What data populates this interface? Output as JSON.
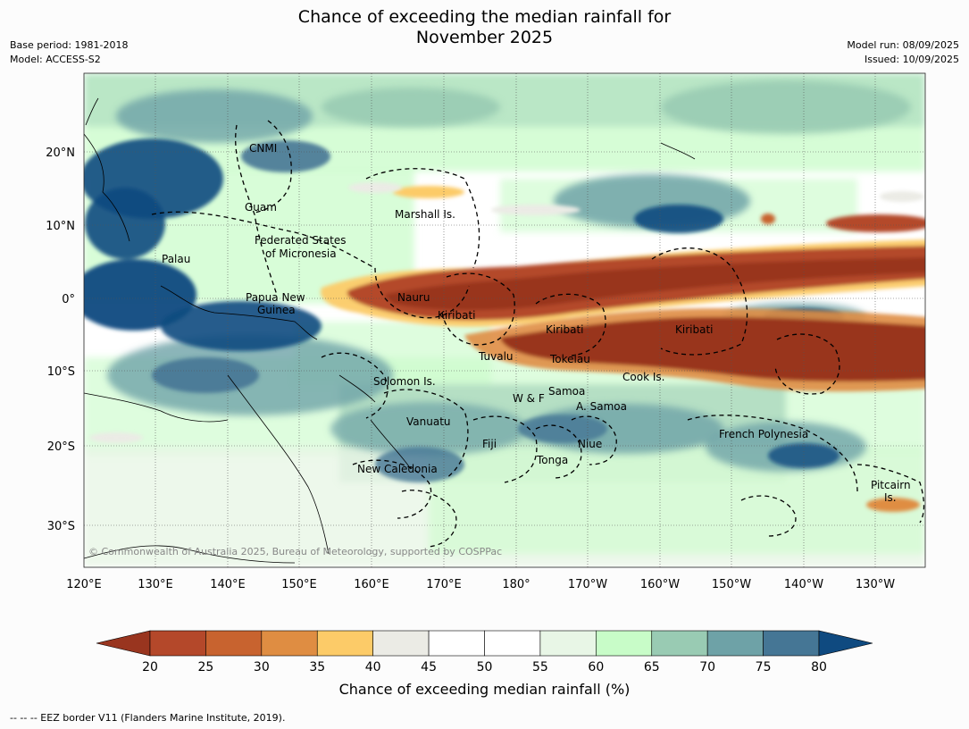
{
  "title_line1": "Chance of exceeding the median rainfall for",
  "title_line2": "November 2025",
  "meta_left": {
    "base_period": "Base period: 1981-2018",
    "model": "Model: ACCESS-S2"
  },
  "meta_right": {
    "model_run": "Model run: 08/09/2025",
    "issued": "Issued: 10/09/2025"
  },
  "copyright": "© Commonwealth of Australia 2025, Bureau of Meteorology, supported by COSPPac",
  "longitude_labels": [
    "120°E",
    "130°E",
    "140°E",
    "150°E",
    "160°E",
    "170°E",
    "180°",
    "170°W",
    "160°W",
    "150°W",
    "140°W",
    "130°W"
  ],
  "latitude_labels": [
    "20°N",
    "10°N",
    "0°",
    "10°S",
    "20°S",
    "30°S"
  ],
  "regions": [
    {
      "name": "CNMI"
    },
    {
      "name": "Guam"
    },
    {
      "name": "Marshall Is."
    },
    {
      "name": "Federated States"
    },
    {
      "name": "of Micronesia"
    },
    {
      "name": "Palau"
    },
    {
      "name": "Papua New"
    },
    {
      "name": "Guinea"
    },
    {
      "name": "Nauru"
    },
    {
      "name": "Kiribati"
    },
    {
      "name": "Kiribati"
    },
    {
      "name": "Kiribati"
    },
    {
      "name": "Tuvalu"
    },
    {
      "name": "Tokelau"
    },
    {
      "name": "Cook Is."
    },
    {
      "name": "Solomon Is."
    },
    {
      "name": "Samoa"
    },
    {
      "name": "W & F"
    },
    {
      "name": "A. Samoa"
    },
    {
      "name": "Vanuatu"
    },
    {
      "name": "Fiji"
    },
    {
      "name": "Niue"
    },
    {
      "name": "French Polynesia"
    },
    {
      "name": "Tonga"
    },
    {
      "name": "New Caledonia"
    },
    {
      "name": "Pitcairn"
    },
    {
      "name": "Is."
    }
  ],
  "colorbar": {
    "ticks": [
      "20",
      "25",
      "30",
      "35",
      "40",
      "45",
      "50",
      "55",
      "60",
      "65",
      "70",
      "75",
      "80"
    ],
    "colors": [
      "#b4482a",
      "#c8632f",
      "#df8d42",
      "#fccb68",
      "#ebebe5",
      "#ffffff",
      "#ffffff",
      "#e8f6e6",
      "#c8fcc8",
      "#99cbb3",
      "#6ea2a7",
      "#457695"
    ],
    "low_extend_color": "#99351f",
    "high_extend_color": "#0f4a80",
    "title": "Chance of exceeding median rainfall (%)"
  },
  "footer": "--  --  -- EEZ border V11 (Flanders Marine Institute, 2019)."
}
